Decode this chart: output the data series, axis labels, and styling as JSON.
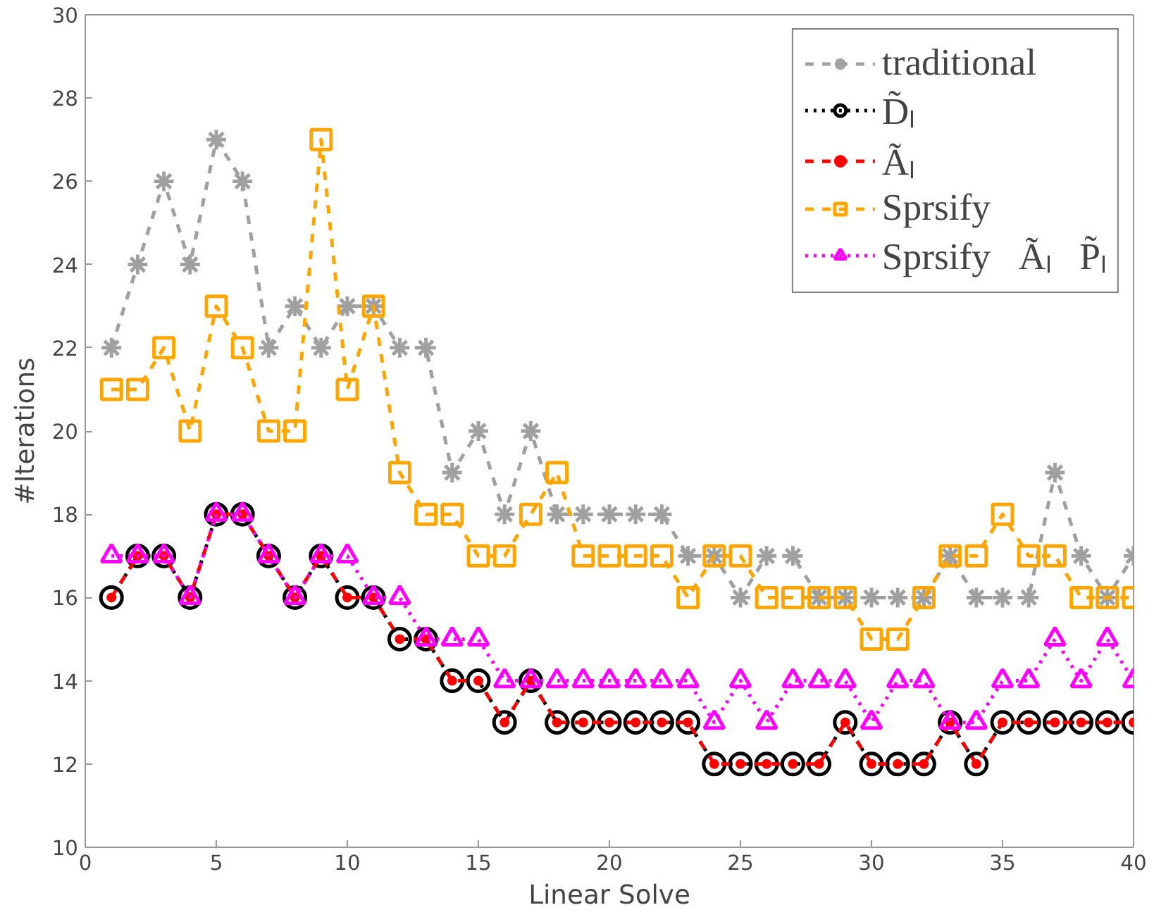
{
  "chart_data": {
    "type": "line",
    "xlabel": "Linear Solve",
    "ylabel": "#Iterations",
    "x": [
      1,
      2,
      3,
      4,
      5,
      6,
      7,
      8,
      9,
      10,
      11,
      12,
      13,
      14,
      15,
      16,
      17,
      18,
      19,
      20,
      21,
      22,
      23,
      24,
      25,
      26,
      27,
      28,
      29,
      30,
      31,
      32,
      33,
      34,
      35,
      36,
      37,
      38,
      39,
      40
    ],
    "xlim": [
      0,
      40
    ],
    "xticks": [
      0,
      5,
      10,
      15,
      20,
      25,
      30,
      35,
      40
    ],
    "ylim": [
      10,
      30
    ],
    "yticks": [
      10,
      12,
      14,
      16,
      18,
      20,
      22,
      24,
      26,
      28,
      30
    ],
    "grid": false,
    "legend": "top right",
    "series": [
      {
        "name": "traditional",
        "color": "#a0a0a0",
        "marker": "cross",
        "line_style": "dashed",
        "values": [
          22,
          24,
          26,
          24,
          27,
          26,
          22,
          23,
          22,
          23,
          23,
          22,
          22,
          19,
          20,
          18,
          20,
          18,
          18,
          18,
          18,
          18,
          17,
          17,
          16,
          17,
          17,
          16,
          16,
          16,
          16,
          16,
          17,
          16,
          16,
          16,
          19,
          17,
          16,
          17
        ]
      },
      {
        "name": "D̃ₗ",
        "color": "#000000",
        "marker": "circle",
        "line_style": "dotted",
        "values": [
          16,
          17,
          17,
          16,
          18,
          18,
          17,
          16,
          17,
          16,
          16,
          15,
          15,
          14,
          14,
          13,
          14,
          13,
          13,
          13,
          13,
          13,
          13,
          12,
          12,
          12,
          12,
          12,
          13,
          12,
          12,
          12,
          13,
          12,
          13,
          13,
          13,
          13,
          13,
          13
        ]
      },
      {
        "name": "Ãₗ",
        "color": "#ff0000",
        "marker": "circle",
        "line_style": "dashed",
        "values": [
          16,
          17,
          17,
          16,
          18,
          18,
          17,
          16,
          17,
          16,
          16,
          15,
          15,
          14,
          14,
          13,
          14,
          13,
          13,
          13,
          13,
          13,
          13,
          12,
          12,
          12,
          12,
          12,
          13,
          12,
          12,
          12,
          13,
          12,
          13,
          13,
          13,
          13,
          13,
          13
        ]
      },
      {
        "name": "Sprsify",
        "color": "#ffa500",
        "marker": "square",
        "line_style": "dashed",
        "values": [
          21,
          21,
          22,
          20,
          23,
          22,
          20,
          20,
          27,
          21,
          23,
          19,
          18,
          18,
          17,
          17,
          18,
          19,
          17,
          17,
          17,
          17,
          16,
          17,
          17,
          16,
          16,
          16,
          16,
          15,
          15,
          16,
          17,
          17,
          18,
          17,
          17,
          16,
          16,
          16
        ]
      },
      {
        "name": "Sprsify   Ãₗ   P̃ₗ",
        "color": "#ff00ff",
        "marker": "triangle",
        "line_style": "dotted",
        "values": [
          17,
          17,
          17,
          16,
          18,
          18,
          17,
          16,
          17,
          17,
          16,
          16,
          15,
          15,
          15,
          14,
          14,
          14,
          14,
          14,
          14,
          14,
          14,
          13,
          14,
          13,
          14,
          14,
          14,
          13,
          14,
          14,
          13,
          13,
          14,
          14,
          15,
          14,
          15,
          14
        ]
      }
    ]
  }
}
